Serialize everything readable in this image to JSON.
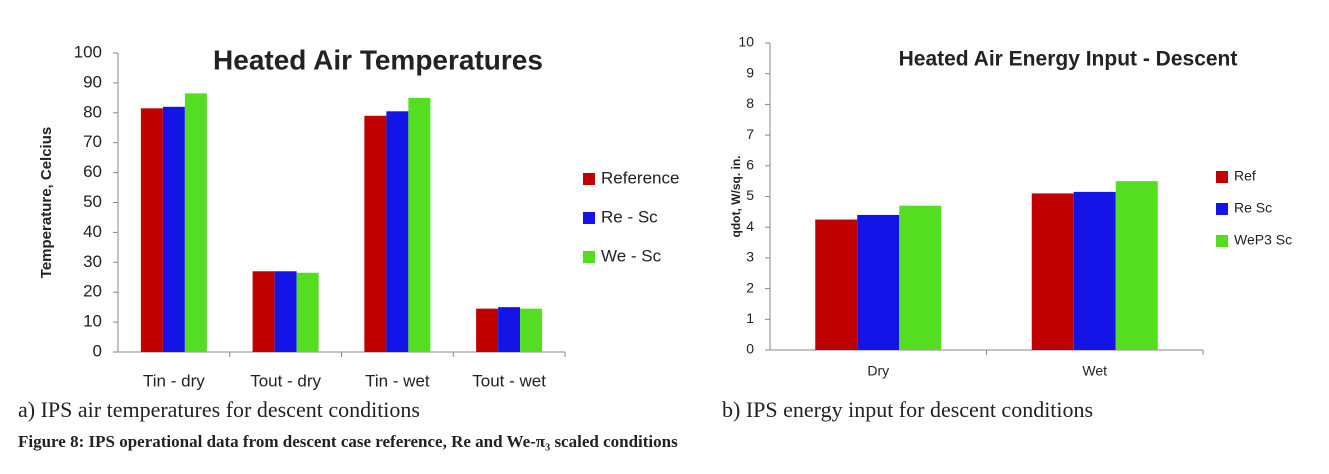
{
  "chart_data": [
    {
      "type": "bar",
      "title": "Heated Air Temperatures",
      "y_label": "Temperature, Celcius",
      "categories": [
        "Tin - dry",
        "Tout - dry",
        "Tin - wet",
        "Tout - wet"
      ],
      "series": [
        {
          "name": "Reference",
          "color": "#c00000",
          "values": [
            81.5,
            27,
            79,
            14.5
          ]
        },
        {
          "name": "Re - Sc",
          "color": "#1414e6",
          "values": [
            82,
            27,
            80.5,
            15
          ]
        },
        {
          "name": "We - Sc",
          "color": "#55dd22",
          "values": [
            86.5,
            26.5,
            85,
            14.5
          ]
        }
      ],
      "ylim": [
        0,
        100
      ],
      "yticks": [
        0,
        10,
        20,
        30,
        40,
        50,
        60,
        70,
        80,
        90,
        100
      ],
      "legend": "right"
    },
    {
      "type": "bar",
      "title": "Heated Air Energy Input - Descent",
      "y_label": "qdot, W/sq. in.",
      "categories": [
        "Dry",
        "Wet"
      ],
      "series": [
        {
          "name": "Ref",
          "color": "#c00000",
          "values": [
            4.25,
            5.1
          ]
        },
        {
          "name": "Re Sc",
          "color": "#1414e6",
          "values": [
            4.4,
            5.15
          ]
        },
        {
          "name": "WeP3 Sc",
          "color": "#55dd22",
          "values": [
            4.7,
            5.5
          ]
        }
      ],
      "ylim": [
        0,
        10
      ],
      "yticks": [
        0,
        1,
        2,
        3,
        4,
        5,
        6,
        7,
        8,
        9,
        10
      ],
      "legend": "right"
    }
  ],
  "captions": {
    "a": "a) IPS air temperatures for descent conditions",
    "b": "b) IPS energy input for descent conditions",
    "figure": "Figure 8: IPS operational data from descent case reference, Re and We-π₃ scaled conditions"
  }
}
